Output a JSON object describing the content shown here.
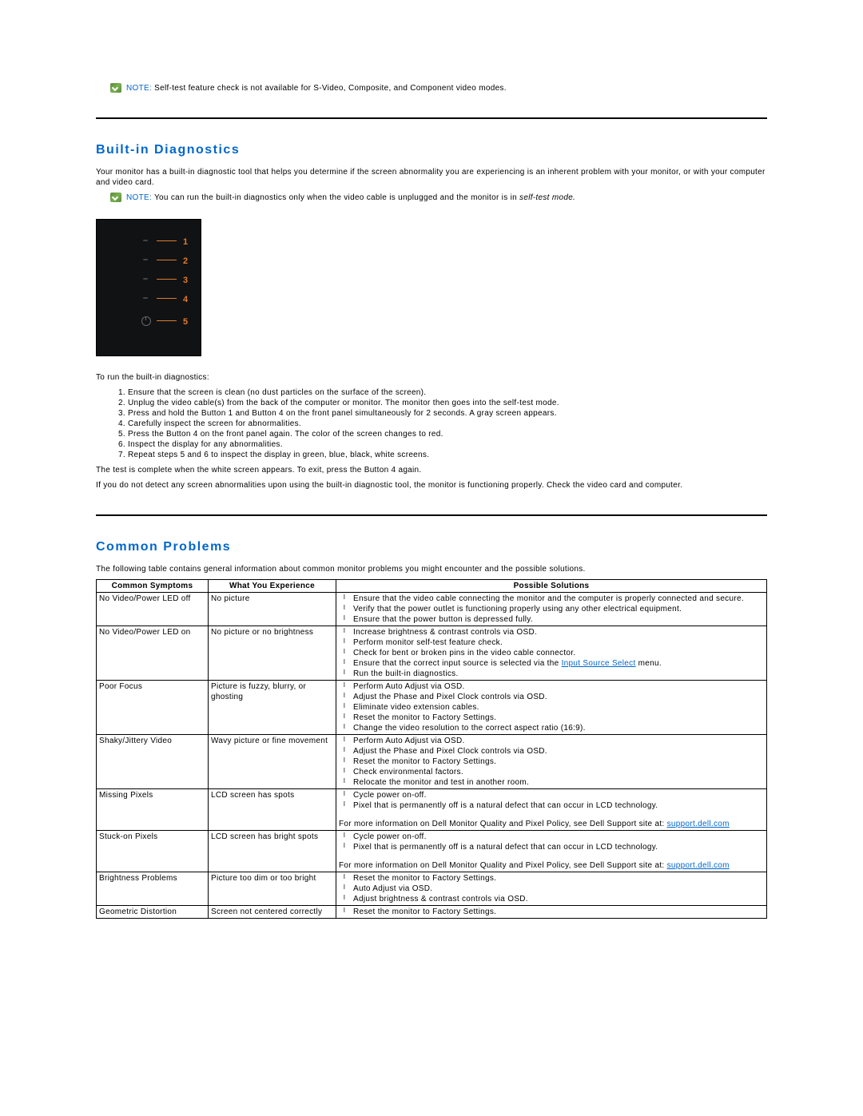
{
  "note_label": "NOTE:",
  "top_note": " Self-test feature check is not available for S-Video, Composite, and Component video modes.",
  "section_diag_title": "Built-in Diagnostics",
  "diag_intro": "Your monitor has a built-in diagnostic tool that helps you determine if the screen abnormality you are experiencing is an inherent problem with your monitor, or with your computer and video card.",
  "diag_note_pre": " You can run the built-in diagnostics only when the video cable is unplugged and the monitor is in ",
  "diag_note_em": "self-test mode.",
  "diag_labels": [
    "1",
    "2",
    "3",
    "4",
    "5"
  ],
  "diag_run_line": "To run the built-in diagnostics:",
  "diag_steps": [
    "Ensure that the screen is clean (no dust particles on the surface of the screen).",
    "Unplug the video cable(s) from the back of the computer or monitor. The monitor then goes into the self-test mode.",
    "Press and hold the Button 1 and Button 4 on the front panel simultaneously for 2 seconds. A gray screen appears.",
    "Carefully inspect the screen for abnormalities.",
    "Press the Button 4 on the front panel again. The color of the screen changes to red.",
    "Inspect the display for any abnormalities.",
    "Repeat steps 5 and 6 to inspect the display in green, blue, black, white screens."
  ],
  "diag_complete": "The test is complete when the white screen appears. To exit, press the Button 4 again.",
  "diag_outro": "If you do not detect any screen abnormalities upon using the built-in diagnostic tool, the monitor is functioning properly. Check the video card and computer.",
  "section_common_title": "Common Problems",
  "common_intro": "The following table contains general information about common monitor problems you might encounter and the possible solutions.",
  "table": {
    "headers": [
      "Common Symptoms",
      "What You Experience",
      "Possible Solutions"
    ],
    "link_input_source": "Input Source Select",
    "link_support": "support.dell.com",
    "pixel_extra": "For more information on Dell Monitor Quality and Pixel Policy, see Dell Support site at: ",
    "rows": [
      {
        "symptom": "No Video/Power LED off",
        "experience": "No picture",
        "solutions": [
          "Ensure that the video cable connecting the monitor and the computer is properly connected and secure.",
          "Verify that the power outlet is functioning properly using any other electrical equipment.",
          "Ensure that the power button is depressed fully."
        ]
      },
      {
        "symptom": "No Video/Power LED on",
        "experience": "No picture or no brightness",
        "solutions_pre": [
          "Increase brightness & contrast controls via OSD.",
          "Perform monitor self-test feature check.",
          "Check for bent or broken pins in the video cable connector."
        ],
        "solution_link_line_pre": "Ensure that the correct input source is selected via the ",
        "solution_link_line_post": " menu.",
        "solutions_post": [
          "Run the built-in diagnostics."
        ]
      },
      {
        "symptom": "Poor Focus",
        "experience": "Picture is fuzzy, blurry, or ghosting",
        "solutions": [
          "Perform Auto Adjust via OSD.",
          "Adjust the Phase and Pixel Clock controls via OSD.",
          "Eliminate video extension cables.",
          "Reset the monitor to Factory Settings.",
          "Change the video resolution to the correct aspect ratio (16:9)."
        ]
      },
      {
        "symptom": "Shaky/Jittery Video",
        "experience": "Wavy picture or fine movement",
        "solutions": [
          "Perform Auto Adjust via OSD.",
          "Adjust the Phase and Pixel Clock controls via OSD.",
          "Reset the monitor to Factory Settings.",
          "Check environmental factors.",
          "Relocate the monitor and test in another room."
        ]
      },
      {
        "symptom": "Missing Pixels",
        "experience": "LCD screen has spots",
        "solutions": [
          "Cycle power on-off.",
          "Pixel that is permanently off is a natural defect that can occur in LCD technology."
        ],
        "has_pixel_extra": true
      },
      {
        "symptom": "Stuck-on Pixels",
        "experience": "LCD screen has bright spots",
        "solutions": [
          "Cycle power on-off.",
          "Pixel that is permanently off is a natural defect that can occur in LCD technology."
        ],
        "has_pixel_extra": true
      },
      {
        "symptom": "Brightness Problems",
        "experience": "Picture too dim or too bright",
        "solutions": [
          "Reset the monitor to Factory Settings.",
          "Auto Adjust via OSD.",
          "Adjust brightness & contrast controls via OSD."
        ]
      },
      {
        "symptom": "Geometric Distortion",
        "experience": "Screen not centered correctly",
        "solutions": [
          "Reset the monitor to Factory Settings."
        ]
      }
    ]
  }
}
